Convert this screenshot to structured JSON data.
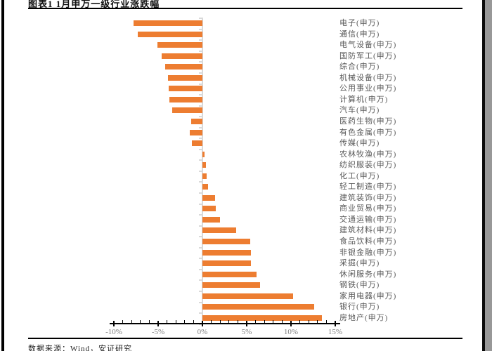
{
  "page": {
    "title": "图表1 1月申万一级行业涨跌幅",
    "source": "数据来源：Wind，安证研究"
  },
  "chart_data": {
    "type": "bar",
    "orientation": "horizontal",
    "title": "图表1 1月申万一级行业涨跌幅",
    "categories": [
      "电子(申万)",
      "通信(申万)",
      "电气设备(申万)",
      "国防军工(申万)",
      "综合(申万)",
      "机械设备(申万)",
      "公用事业(申万)",
      "计算机(申万)",
      "汽车(申万)",
      "医药生物(申万)",
      "有色金属(申万)",
      "传媒(申万)",
      "农林牧渔(申万)",
      "纺织服装(申万)",
      "化工(申万)",
      "轻工制造(申万)",
      "建筑装饰(申万)",
      "商业贸易(申万)",
      "交通运输(申万)",
      "建筑材料(申万)",
      "食品饮料(申万)",
      "非银金融(申万)",
      "采掘(申万)",
      "休闲服务(申万)",
      "钢铁(申万)",
      "家用电器(申万)",
      "银行(申万)",
      "房地产(申万)"
    ],
    "values": [
      -7.8,
      -7.3,
      -5.1,
      -4.6,
      -4.2,
      -3.9,
      -3.8,
      -3.7,
      -3.4,
      -1.3,
      -1.4,
      -1.2,
      0.2,
      0.4,
      0.5,
      0.6,
      1.4,
      1.5,
      2.0,
      3.8,
      5.4,
      5.5,
      5.5,
      6.1,
      6.5,
      10.2,
      12.6,
      13.5
    ],
    "value_unit": "%",
    "xlabel": "",
    "ylabel": "",
    "xlim": [
      -10,
      15
    ],
    "x_ticks": [
      "-10%",
      "-5%",
      "0%",
      "5%",
      "10%",
      "15%"
    ],
    "x_tick_values": [
      -10,
      -5,
      0,
      5,
      10,
      15
    ],
    "minor_tick_step": 1,
    "grid": false,
    "legend": false,
    "bar_color": "#ed7d31",
    "axis_color": "#000000",
    "zero_line_color": "#d9d9d9",
    "category_label_color": "#595959",
    "tick_label_color": "#7f7f7f"
  }
}
